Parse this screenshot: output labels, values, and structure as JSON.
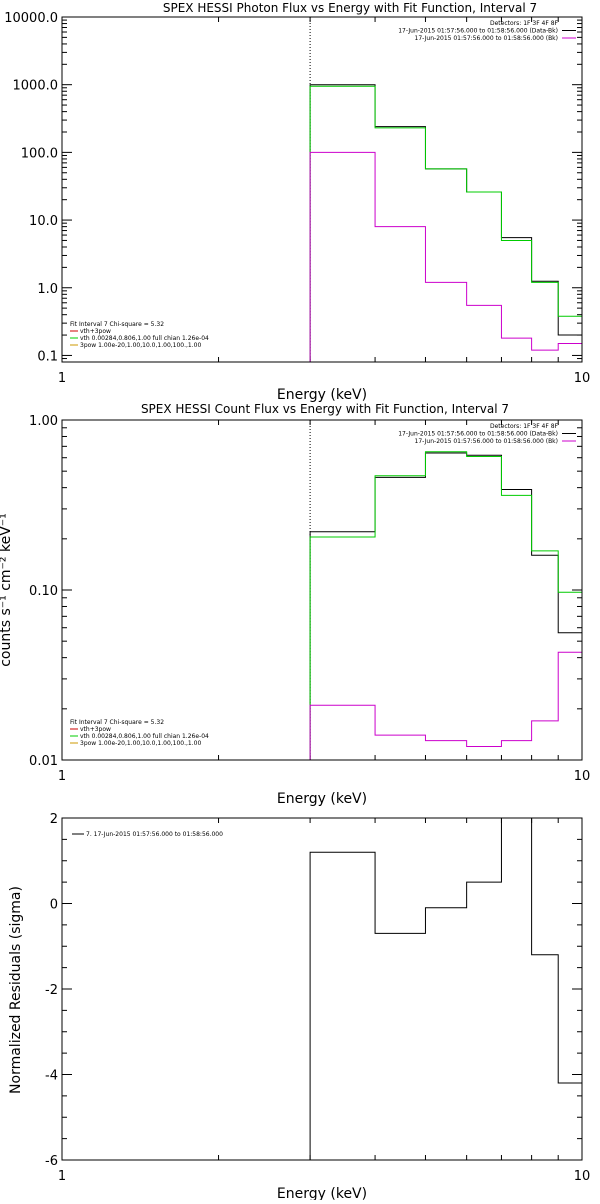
{
  "chart_data": [
    {
      "type": "line",
      "title": "SPEX HESSI Photon Flux vs Energy with Fit Function, Interval 7",
      "xlabel": "Energy (keV)",
      "ylabel": "",
      "x_scale": "log",
      "y_scale": "log",
      "xlim": [
        1,
        10
      ],
      "ylim": [
        0.08,
        10000
      ],
      "x_ticks": [
        "1",
        "10"
      ],
      "y_ticks": [
        "0.1",
        "1.0",
        "10.0",
        "100.0",
        "1000.0",
        "10000.0"
      ],
      "y_tick_values": [
        0.1,
        1,
        10,
        100,
        1000,
        10000
      ],
      "grid": false,
      "vline_x": 3.0,
      "bin_edges": [
        3.0,
        4.0,
        5.0,
        6.0,
        7.0,
        8.0,
        9.0,
        10.0
      ],
      "series": [
        {
          "id": "data",
          "color": "#000000",
          "values": [
            1000,
            240,
            57,
            26,
            5.5,
            1.25,
            0.2
          ]
        },
        {
          "id": "fit",
          "color": "#00cc00",
          "values": [
            950,
            230,
            57,
            26,
            5.0,
            1.2,
            0.38
          ]
        },
        {
          "id": "thick",
          "color": "#cc00cc",
          "values": [
            100,
            8,
            1.2,
            0.55,
            0.18,
            0.12,
            0.15
          ]
        }
      ],
      "legend_top_right": {
        "lines": [
          {
            "text": "Detectors: 1F 3F 4F 8F",
            "color": null
          },
          {
            "text": "17-Jun-2015 01:57:56.000 to 01:58:56.000 (Data-Bk)",
            "color": "#000000"
          },
          {
            "text": "17-Jun-2015 01:57:56.000 to 01:58:56.000 (Bk)",
            "color": "#cc00cc"
          }
        ]
      },
      "legend_bottom_left": {
        "header": "Fit Interval 7   Chi-square = 5.32",
        "lines": [
          {
            "text": "vth+3pow",
            "color": "#cc0000"
          },
          {
            "text": "vth 0.00284,0.806,1.00  full chian 1.26e-04",
            "color": "#00cc00"
          },
          {
            "text": "3pow 1.00e-20,1.00,10.0,1.00,100.,1.00",
            "color": "#cc9900"
          }
        ]
      }
    },
    {
      "type": "line",
      "title": "SPEX HESSI Count Flux vs Energy with Fit Function, Interval 7",
      "xlabel": "Energy (keV)",
      "ylabel": "counts s⁻¹ cm⁻² keV⁻¹",
      "x_scale": "log",
      "y_scale": "log",
      "xlim": [
        1,
        10
      ],
      "ylim": [
        0.01,
        1.0
      ],
      "x_ticks": [
        "1",
        "10"
      ],
      "y_ticks": [
        "0.01",
        "0.10",
        "1.00"
      ],
      "y_tick_values": [
        0.01,
        0.1,
        1.0
      ],
      "grid": false,
      "vline_x": 3.0,
      "bin_edges": [
        3.0,
        4.0,
        5.0,
        6.0,
        7.0,
        8.0,
        9.0,
        10.0
      ],
      "series": [
        {
          "id": "data",
          "color": "#000000",
          "values": [
            0.22,
            0.46,
            0.64,
            0.62,
            0.39,
            0.16,
            0.056
          ]
        },
        {
          "id": "fit",
          "color": "#00cc00",
          "values": [
            0.205,
            0.47,
            0.65,
            0.61,
            0.36,
            0.17,
            0.097
          ]
        },
        {
          "id": "bk",
          "color": "#cc00cc",
          "values": [
            0.021,
            0.014,
            0.013,
            0.012,
            0.013,
            0.017,
            0.043
          ]
        }
      ],
      "legend_top_right": {
        "lines": [
          {
            "text": "Detectors: 1F 3F 4F 8F",
            "color": null
          },
          {
            "text": "17-Jun-2015 01:57:56.000 to 01:58:56.000 (Data-Bk)",
            "color": "#000000"
          },
          {
            "text": "17-Jun-2015 01:57:56.000 to 01:58:56.000 (Bk)",
            "color": "#cc00cc"
          }
        ]
      },
      "legend_bottom_left": {
        "header": "Fit Interval 7   Chi-square = 5.32",
        "lines": [
          {
            "text": "vth+3pow",
            "color": "#cc0000"
          },
          {
            "text": "vth 0.00284,0.806,1.00  full chian 1.26e-04",
            "color": "#00cc00"
          },
          {
            "text": "3pow 1.00e-20,1.00,10.0,1.00,100.,1.00",
            "color": "#cc9900"
          }
        ]
      }
    },
    {
      "type": "line",
      "title": "",
      "xlabel": "Energy (keV)",
      "ylabel": "Normalized Residuals (sigma)",
      "x_scale": "log",
      "y_scale": "linear",
      "xlim": [
        1,
        10
      ],
      "ylim": [
        -6,
        2
      ],
      "x_ticks": [
        "1",
        "10"
      ],
      "y_ticks": [
        "-6",
        "-4",
        "-2",
        "0",
        "2"
      ],
      "y_tick_values": [
        -6,
        -4,
        -2,
        0,
        2
      ],
      "grid": false,
      "bin_edges": [
        3.0,
        4.0,
        5.0,
        6.0,
        7.0,
        8.0,
        9.0,
        10.0
      ],
      "series": [
        {
          "id": "residuals",
          "color": "#000000",
          "values": [
            1.2,
            -0.7,
            -0.1,
            0.5,
            2.0,
            -1.2,
            -4.2
          ]
        }
      ],
      "legend_top_left": {
        "lines": [
          {
            "text": "7. 17-Jun-2015 01:57:56.000 to 01:58:56.000",
            "color": "#000000"
          }
        ]
      }
    }
  ]
}
